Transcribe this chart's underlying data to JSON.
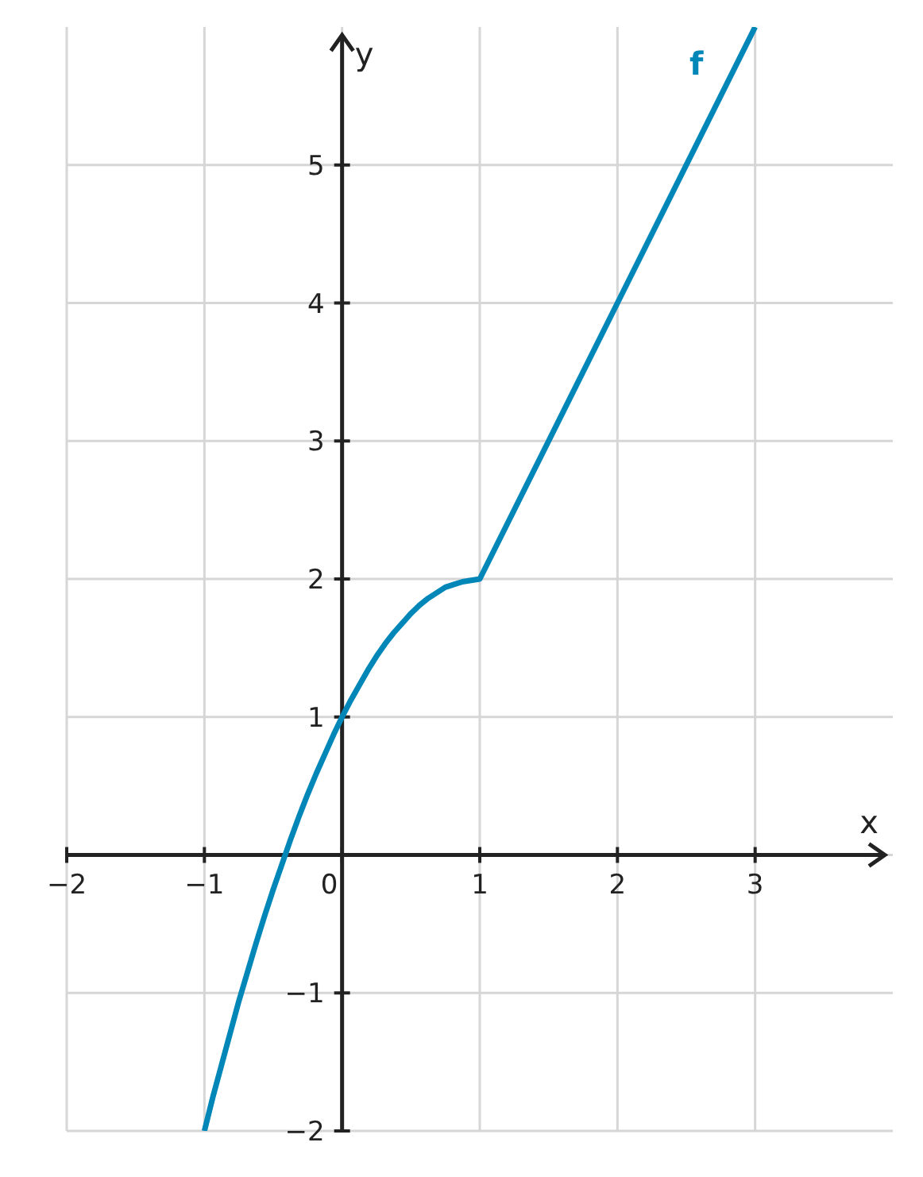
{
  "chart_data": {
    "type": "line",
    "xlabel": "x",
    "ylabel": "y",
    "x": [
      -1,
      -0.9375,
      -0.875,
      -0.8125,
      -0.75,
      -0.6875,
      -0.625,
      -0.5625,
      -0.5,
      -0.4375,
      -0.375,
      -0.3125,
      -0.25,
      -0.1875,
      -0.125,
      -0.0625,
      0,
      0.0625,
      0.125,
      0.1875,
      0.25,
      0.3125,
      0.375,
      0.4375,
      0.5,
      0.5625,
      0.625,
      0.6875,
      0.75,
      0.8125,
      0.875,
      1,
      3
    ],
    "series": [
      {
        "name": "f",
        "color": "#0087b8",
        "values": [
          -2,
          -1.75,
          -1.52,
          -1.29,
          -1.06,
          -0.85,
          -0.64,
          -0.44,
          -0.25,
          -0.07,
          0.11,
          0.28,
          0.44,
          0.59,
          0.73,
          0.87,
          1,
          1.12,
          1.23,
          1.34,
          1.44,
          1.53,
          1.61,
          1.68,
          1.75,
          1.81,
          1.86,
          1.9,
          1.94,
          1.96,
          1.98,
          2,
          6
        ]
      }
    ],
    "xlim": [
      -2,
      4
    ],
    "ylim": [
      -2,
      6
    ],
    "xticks": [
      {
        "value": -2,
        "label": "−2"
      },
      {
        "value": -1,
        "label": "−1"
      },
      0,
      1,
      2,
      3
    ],
    "yticks": [
      {
        "value": -2,
        "label": "−2"
      },
      {
        "value": -1,
        "label": "−1"
      },
      {
        "value": 0,
        "label": null
      },
      1,
      2,
      3,
      4,
      5
    ],
    "grid": true,
    "line_style": "solid"
  }
}
